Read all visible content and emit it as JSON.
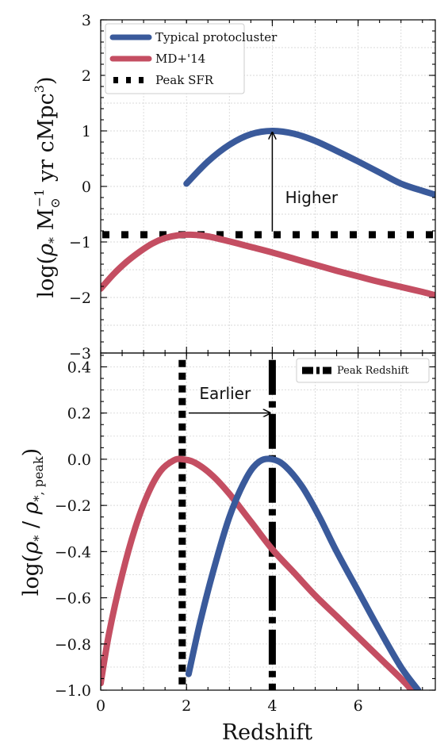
{
  "chart_data": [
    {
      "panel": "top",
      "type": "line",
      "xlabel": "",
      "ylabel_tex": "log(ρ̇* M☉⁻¹ yr cMpc³)",
      "ylabel_parts": {
        "pre": "log(",
        "rho": "ρ",
        "star": "*",
        "m": " M",
        "sun": "⊙",
        "minus1": "−1",
        "mid": " yr cMpc",
        "three": "3",
        "close": ")"
      },
      "xlim": [
        0,
        7.8
      ],
      "ylim": [
        -3,
        3
      ],
      "yticks": [
        -3,
        -2,
        -1,
        0,
        1,
        2,
        3
      ],
      "ytick_labels": [
        "−3",
        "−2",
        "−1",
        "0",
        "1",
        "2",
        "3"
      ],
      "grid": true,
      "legend_placement": "top-left",
      "series": [
        {
          "name": "Typical protocluster",
          "color": "#3a5a9b",
          "style": "solid",
          "x": [
            2.0,
            2.5,
            3.0,
            3.5,
            4.0,
            4.5,
            5.0,
            5.5,
            6.0,
            6.5,
            7.0,
            7.5,
            7.8
          ],
          "y": [
            0.05,
            0.45,
            0.75,
            0.94,
            1.0,
            0.95,
            0.82,
            0.64,
            0.45,
            0.25,
            0.05,
            -0.08,
            -0.15
          ]
        },
        {
          "name": "MD+'14",
          "color": "#c44e62",
          "style": "solid",
          "x": [
            0.0,
            0.3,
            0.6,
            0.9,
            1.2,
            1.5,
            1.8,
            2.1,
            2.5,
            3.0,
            3.5,
            4.0,
            4.5,
            5.0,
            5.5,
            6.0,
            6.5,
            7.0,
            7.5,
            7.8
          ],
          "y": [
            -1.84,
            -1.58,
            -1.36,
            -1.18,
            -1.03,
            -0.93,
            -0.88,
            -0.87,
            -0.9,
            -0.99,
            -1.09,
            -1.19,
            -1.3,
            -1.41,
            -1.52,
            -1.62,
            -1.72,
            -1.81,
            -1.9,
            -1.96
          ]
        },
        {
          "name": "Peak SFR",
          "color": "#000000",
          "style": "dotted",
          "x": [
            0,
            7.8
          ],
          "y": [
            -0.87,
            -0.87
          ]
        }
      ],
      "annotations": [
        {
          "text": "Higher",
          "arrow_x": 4.0,
          "arrow_from_y": -0.87,
          "arrow_to_y": 1.0,
          "text_x": 4.3,
          "text_y": -0.3
        }
      ]
    },
    {
      "panel": "bottom",
      "type": "line",
      "xlabel": "Redshift",
      "ylabel_parts": {
        "pre": "log(",
        "rho": "ρ",
        "star": "*",
        "mid": " / ",
        "rho2": "ρ",
        "sub2": "*, peak",
        "close": ")"
      },
      "xlim": [
        0,
        7.8
      ],
      "ylim": [
        -1.0,
        0.46
      ],
      "xticks": [
        0,
        2,
        4,
        6
      ],
      "xtick_labels": [
        "0",
        "2",
        "4",
        "6"
      ],
      "yticks": [
        -1.0,
        -0.8,
        -0.6,
        -0.4,
        -0.2,
        0.0,
        0.2,
        0.4
      ],
      "ytick_labels": [
        "−1.0",
        "−0.8",
        "−0.6",
        "−0.4",
        "−0.2",
        "0.0",
        "0.2",
        "0.4"
      ],
      "grid": true,
      "legend_placement": "top-right",
      "series": [
        {
          "name": "",
          "color": "#3a5a9b",
          "style": "solid",
          "x": [
            2.05,
            2.3,
            2.6,
            3.0,
            3.4,
            3.7,
            4.0,
            4.3,
            4.7,
            5.1,
            5.5,
            6.0,
            6.5,
            7.0,
            7.4
          ],
          "y": [
            -0.93,
            -0.72,
            -0.5,
            -0.25,
            -0.08,
            -0.01,
            0.0,
            -0.03,
            -0.12,
            -0.25,
            -0.4,
            -0.57,
            -0.74,
            -0.9,
            -1.0
          ]
        },
        {
          "name": "",
          "color": "#c44e62",
          "style": "solid",
          "x": [
            0.0,
            0.2,
            0.5,
            0.8,
            1.1,
            1.4,
            1.7,
            1.9,
            2.2,
            2.6,
            3.0,
            3.5,
            4.0,
            4.5,
            5.0,
            5.5,
            6.0,
            6.5,
            7.0,
            7.25
          ],
          "y": [
            -0.97,
            -0.75,
            -0.5,
            -0.3,
            -0.15,
            -0.05,
            -0.005,
            0.0,
            -0.015,
            -0.07,
            -0.15,
            -0.27,
            -0.39,
            -0.49,
            -0.59,
            -0.68,
            -0.77,
            -0.86,
            -0.95,
            -1.0
          ]
        },
        {
          "name": "Peak Redshift",
          "color": "#000000",
          "style": "dashdot",
          "x": [
            4.0,
            4.0
          ],
          "y": [
            -1.0,
            0.46
          ]
        },
        {
          "name": "",
          "color": "#000000",
          "style": "dotted",
          "x": [
            1.9,
            1.9
          ],
          "y": [
            -1.0,
            0.46
          ]
        }
      ],
      "annotations": [
        {
          "text": "Earlier",
          "arrow_from_x": 2.05,
          "arrow_to_x": 3.95,
          "arrow_y": 0.2,
          "text_x": 2.3,
          "text_y": 0.26
        }
      ]
    }
  ]
}
